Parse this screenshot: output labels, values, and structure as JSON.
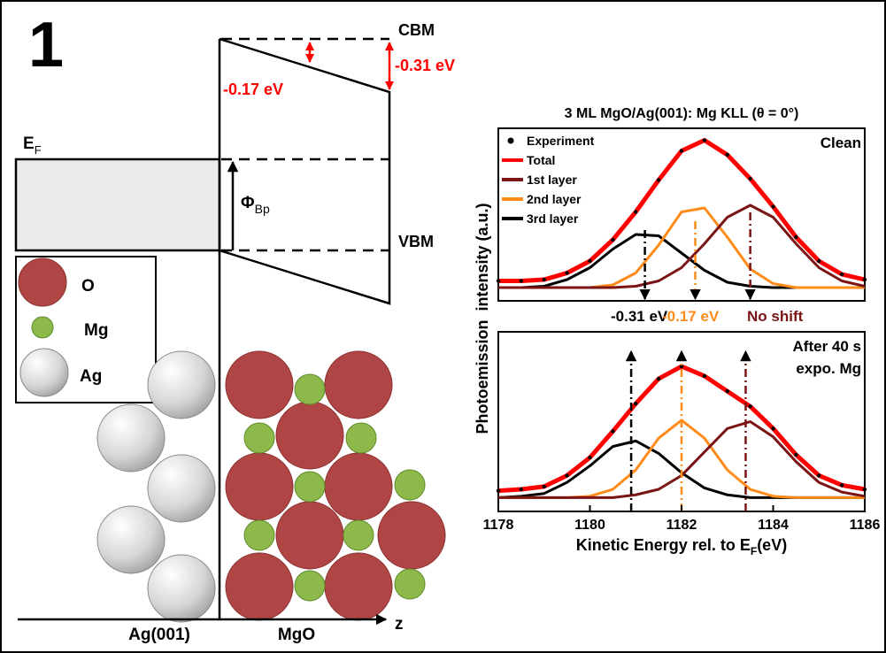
{
  "figure_label": "1",
  "band_diagram": {
    "cbm": "CBM",
    "vbm": "VBM",
    "fermi": {
      "main": "E",
      "sub": "F"
    },
    "barrier": {
      "main": "Φ",
      "sub": "Bp"
    },
    "offset_small": "-0.17 eV",
    "offset_large": "-0.31 eV",
    "legend": [
      "O",
      "Mg",
      "Ag"
    ],
    "substrate_label": "Ag(001)",
    "film_label": "MgO",
    "axis_label": "z"
  },
  "chart_data": [
    {
      "type": "line",
      "title": "3 ML MgO/Ag(001): Mg KLL (θ = 0°)",
      "y_label": "Photoemission  intensity (a.u.)",
      "annotation": "Clean",
      "shift_labels": [
        {
          "text": "-0.31 eV",
          "color": "#000000"
        },
        {
          "text": "-0.17 eV",
          "color": "#ff8c1a"
        },
        {
          "text": "No shift",
          "color": "#7b1515"
        }
      ],
      "x": [
        1178,
        1178.5,
        1179,
        1179.5,
        1180,
        1180.5,
        1181,
        1181.5,
        1182,
        1182.5,
        1183,
        1183.5,
        1184,
        1184.5,
        1185,
        1185.5,
        1186
      ],
      "xlim": [
        1178,
        1186
      ],
      "ylim": [
        -0.1,
        1.2
      ],
      "peak_positions": [
        1181.2,
        1182.3,
        1183.5
      ],
      "series": [
        {
          "name": "Experiment",
          "color": "#000000",
          "markers": true,
          "values": [
            0.05,
            0.05,
            0.06,
            0.11,
            0.2,
            0.36,
            0.57,
            0.81,
            1.03,
            1.11,
            1.0,
            0.82,
            0.61,
            0.38,
            0.2,
            0.1,
            0.06
          ]
        },
        {
          "name": "Total",
          "color": "#ff0000",
          "values": [
            0.05,
            0.05,
            0.06,
            0.11,
            0.2,
            0.36,
            0.57,
            0.81,
            1.03,
            1.11,
            1.0,
            0.82,
            0.61,
            0.38,
            0.2,
            0.1,
            0.06
          ]
        },
        {
          "name": "1st layer",
          "color": "#7b1515",
          "values": [
            0,
            0,
            0,
            0,
            0,
            0,
            0.01,
            0.05,
            0.15,
            0.33,
            0.53,
            0.62,
            0.53,
            0.33,
            0.15,
            0.05,
            0.01
          ]
        },
        {
          "name": "2nd layer",
          "color": "#ff8c1a",
          "values": [
            0,
            0,
            0,
            0,
            0,
            0.02,
            0.11,
            0.32,
            0.57,
            0.6,
            0.38,
            0.14,
            0.03,
            0,
            0,
            0,
            0
          ]
        },
        {
          "name": "3rd layer",
          "color": "#000000",
          "values": [
            0,
            0,
            0.01,
            0.06,
            0.15,
            0.29,
            0.4,
            0.39,
            0.26,
            0.13,
            0.04,
            0.01,
            0,
            0,
            0,
            0,
            0
          ]
        }
      ]
    },
    {
      "type": "line",
      "annotation": [
        "After 40 s",
        "expo. Mg"
      ],
      "x_label": {
        "main": "Kinetic Energy rel. to E",
        "sub": "F",
        "after": "(eV)"
      },
      "x": [
        1178,
        1178.5,
        1179,
        1179.5,
        1180,
        1180.5,
        1181,
        1181.5,
        1182,
        1182.5,
        1183,
        1183.5,
        1184,
        1184.5,
        1185,
        1185.5,
        1186
      ],
      "xlim": [
        1178,
        1186
      ],
      "xticks": [
        1178,
        1180,
        1182,
        1184,
        1186
      ],
      "ylim": [
        -0.1,
        1.2
      ],
      "peak_positions": [
        1180.9,
        1182.0,
        1183.4
      ],
      "series": [
        {
          "color": "#000000",
          "markers": true,
          "values": [
            0.05,
            0.06,
            0.08,
            0.16,
            0.29,
            0.48,
            0.68,
            0.86,
            0.95,
            0.88,
            0.77,
            0.66,
            0.5,
            0.31,
            0.16,
            0.09,
            0.06
          ]
        },
        {
          "color": "#ff0000",
          "values": [
            0.05,
            0.06,
            0.08,
            0.16,
            0.29,
            0.48,
            0.68,
            0.86,
            0.95,
            0.88,
            0.77,
            0.66,
            0.5,
            0.31,
            0.16,
            0.09,
            0.06
          ]
        },
        {
          "color": "#7b1515",
          "values": [
            0,
            0,
            0,
            0,
            0,
            0,
            0.02,
            0.06,
            0.16,
            0.33,
            0.5,
            0.55,
            0.44,
            0.26,
            0.11,
            0.04,
            0.01
          ]
        },
        {
          "color": "#ff8c1a",
          "values": [
            0,
            0,
            0,
            0,
            0.01,
            0.06,
            0.2,
            0.43,
            0.56,
            0.43,
            0.2,
            0.06,
            0.01,
            0,
            0,
            0,
            0
          ]
        },
        {
          "color": "#000000",
          "values": [
            0,
            0.01,
            0.03,
            0.11,
            0.23,
            0.37,
            0.41,
            0.32,
            0.18,
            0.07,
            0.02,
            0,
            0,
            0,
            0,
            0,
            0
          ]
        }
      ]
    }
  ]
}
